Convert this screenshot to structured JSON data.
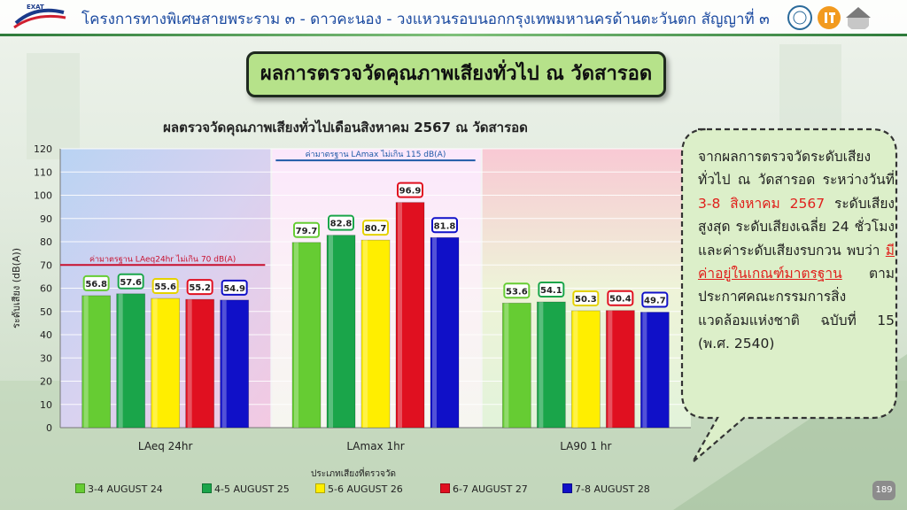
{
  "header": {
    "title": "โครงการทางพิเศษสายพระราม ๓ - ดาวคะนอง - วงแหวนรอบนอกกรุงเทพมหานครด้านตะวันตก สัญญาที่ ๓",
    "logo_text": "EXAT"
  },
  "banner": {
    "text": "ผลการตรวจวัดคุณภาพเสียงทั่วไป ณ วัดสารอด"
  },
  "callout": {
    "part1": "จากผลการตรวจวัดระดับเสียงทั่วไป ณ วัดสารอด ระหว่างวันที่ ",
    "highlight1": "3-8 สิงหาคม 2567",
    "part2": " ระดับเสียงสูงสุด ระดับเสียงเฉลี่ย 24 ชั่วโมง และค่าระดับเสียงรบกวน พบว่า ",
    "highlight2": "มีค่าอยู่ในเกณฑ์มาตรฐาน",
    "part3": " ตามประกาศคณะกรรมการสิ่งแวดล้อมแห่งชาติ ฉบับที่ 15 (พ.ศ. 2540)"
  },
  "page_number": "189",
  "colors": {
    "green_light": "#66cc33",
    "green_dark": "#1aa54a",
    "yellow": "#ffee00",
    "red": "#e01020",
    "blue": "#1010c8",
    "standard_line_red": "#c8102e",
    "standard_line_blue": "#1f5aa8",
    "banner_bg": "#b6e28a"
  },
  "chart_data": {
    "type": "bar",
    "title": "ผลตรวจวัดคุณภาพเสียงทั่วไปเดือนสิงหาคม 2567 ณ วัดสารอด",
    "xlabel": "ประเภทเสียงที่ตรวจวัด",
    "ylabel": "ระดับเสียง (dB(A))",
    "ylim": [
      0,
      120
    ],
    "yticks": [
      0,
      10,
      20,
      30,
      40,
      50,
      60,
      70,
      80,
      90,
      100,
      110,
      120
    ],
    "categories": [
      "LAeq 24hr",
      "LAmax 1hr",
      "LA90 1 hr"
    ],
    "series": [
      {
        "name": "3-4 AUGUST 24",
        "color": "#66cc33",
        "values": [
          56.8,
          79.7,
          53.6
        ]
      },
      {
        "name": "4-5 AUGUST 25",
        "color": "#1aa54a",
        "values": [
          57.6,
          82.8,
          54.1
        ]
      },
      {
        "name": "5-6 AUGUST 26",
        "color": "#ffee00",
        "values": [
          55.6,
          80.7,
          50.3
        ]
      },
      {
        "name": "6-7 AUGUST 27",
        "color": "#e01020",
        "values": [
          55.2,
          96.9,
          50.4
        ]
      },
      {
        "name": "7-8 AUGUST 28",
        "color": "#1010c8",
        "values": [
          54.9,
          81.8,
          49.7
        ]
      }
    ],
    "standards": [
      {
        "label": "ค่ามาตรฐาน LAeq24hr ไม่เกิน 70 dB(A)",
        "value": 70,
        "category": 0,
        "color": "#c8102e"
      },
      {
        "label": "ค่ามาตรฐาน LAmax ไม่เกิน 115 dB(A)",
        "value": 115,
        "category": 1,
        "color": "#1f5aa8"
      }
    ],
    "grid": true,
    "legend_position": "bottom"
  }
}
